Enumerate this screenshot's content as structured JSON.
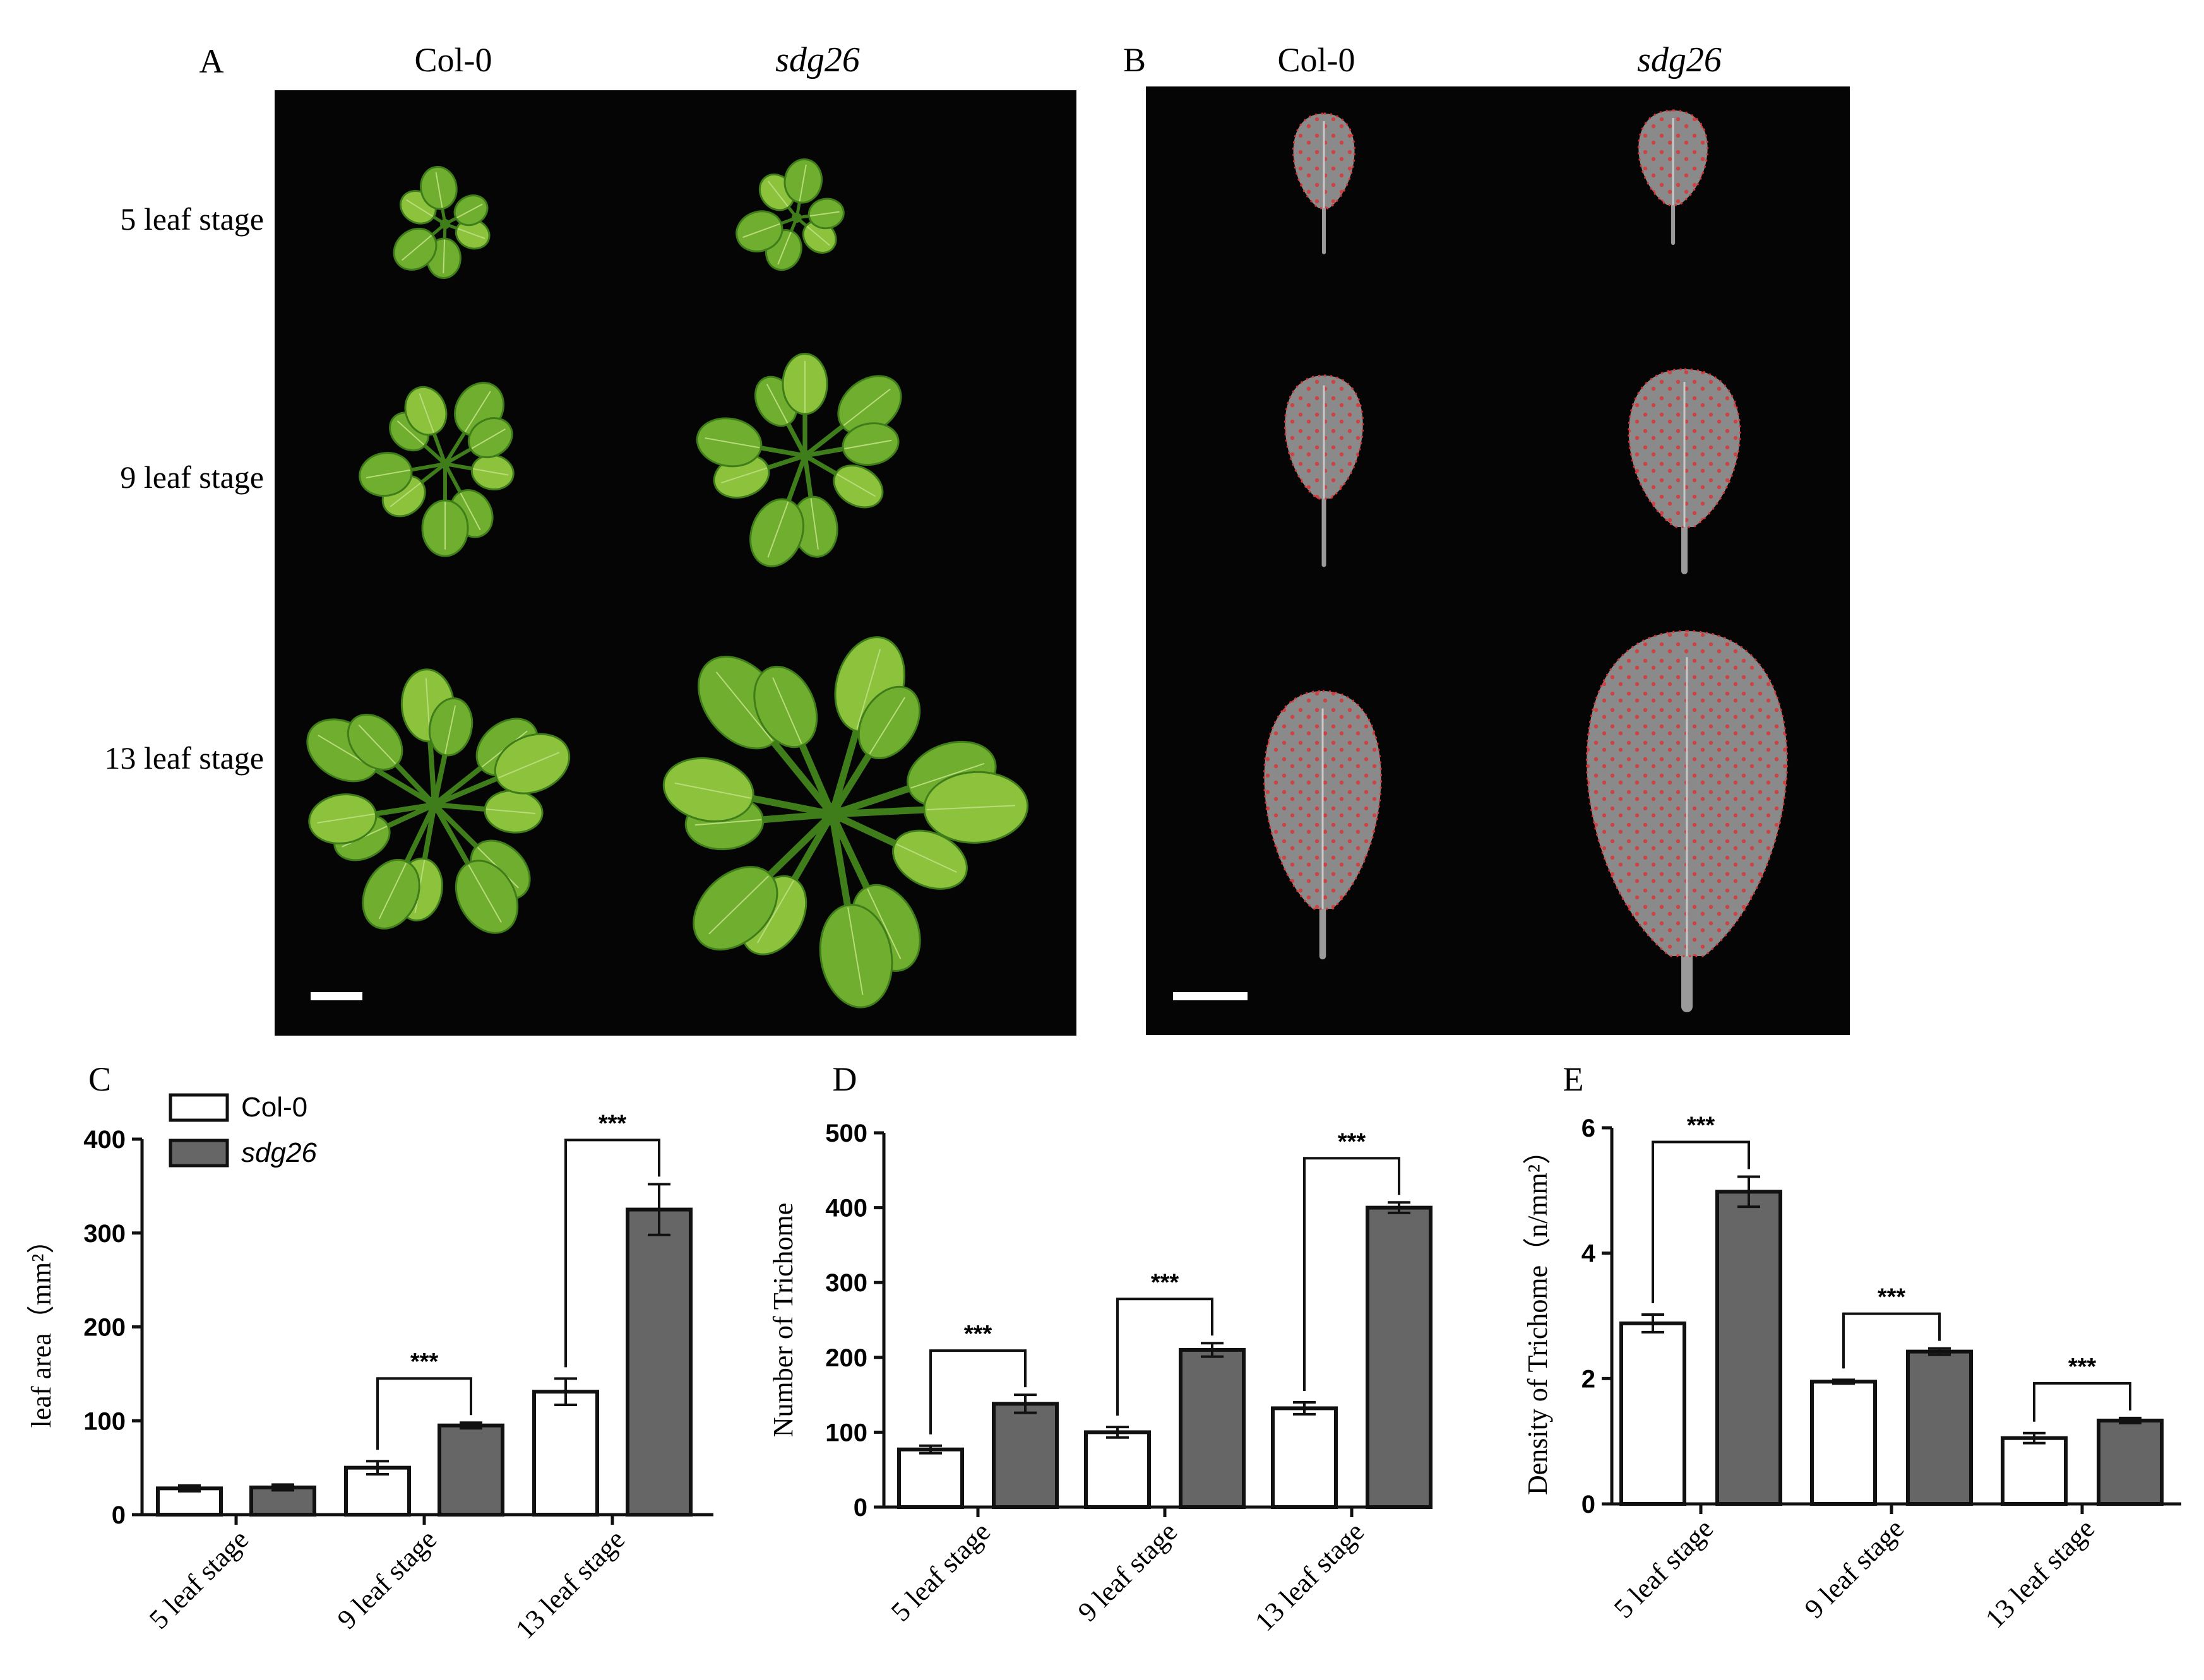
{
  "panels": {
    "A": {
      "label": "A",
      "col_labels": [
        "Col-0",
        "sdg26"
      ],
      "row_labels": [
        "5 leaf stage",
        "9 leaf stage",
        "13 leaf stage"
      ]
    },
    "B": {
      "label": "B",
      "col_labels": [
        "Col-0",
        "sdg26"
      ]
    }
  },
  "colors": {
    "photo_bg": "#050505",
    "leaf_light": "#8cc23c",
    "leaf_dark": "#3f7d1a",
    "leaf_gray": "#8a8a8a",
    "trichome_dot": "#d93535",
    "bar_col0": "#ffffff",
    "bar_sdg26": "#666666",
    "axis": "#111111"
  },
  "chart_data": [
    {
      "panel": "C",
      "type": "bar",
      "title": "",
      "xlabel": "",
      "ylabel": "leaf area（mm²）",
      "categories": [
        "5 leaf stage",
        "9 leaf stage",
        "13 leaf stage"
      ],
      "series": [
        {
          "name": "Col-0",
          "values": [
            28,
            50,
            131
          ],
          "errors": [
            3,
            7,
            14
          ]
        },
        {
          "name": "sdg26",
          "values": [
            29,
            95,
            325
          ],
          "errors": [
            3,
            3,
            27
          ]
        }
      ],
      "ylim": [
        0,
        400
      ],
      "yticks": [
        0,
        100,
        200,
        300,
        400
      ],
      "legend": "top-left",
      "significance": [
        "",
        "***",
        "***"
      ]
    },
    {
      "panel": "D",
      "type": "bar",
      "title": "",
      "xlabel": "",
      "ylabel": "Number of Trichome",
      "categories": [
        "5 leaf stage",
        "9 leaf stage",
        "13 leaf stage"
      ],
      "series": [
        {
          "name": "Col-0",
          "values": [
            77,
            100,
            132
          ],
          "errors": [
            5,
            7,
            8
          ]
        },
        {
          "name": "sdg26",
          "values": [
            138,
            210,
            400
          ],
          "errors": [
            12,
            9,
            7
          ]
        }
      ],
      "ylim": [
        0,
        500
      ],
      "yticks": [
        0,
        100,
        200,
        300,
        400,
        500
      ],
      "significance": [
        "***",
        "***",
        "***"
      ]
    },
    {
      "panel": "E",
      "type": "bar",
      "title": "",
      "xlabel": "",
      "ylabel": "Density of Trichome（n/mm²）",
      "categories": [
        "5 leaf stage",
        "9 leaf stage",
        "13 leaf stage"
      ],
      "series": [
        {
          "name": "Col-0",
          "values": [
            2.88,
            1.95,
            1.05
          ],
          "errors": [
            0.14,
            0.03,
            0.08
          ]
        },
        {
          "name": "sdg26",
          "values": [
            4.98,
            2.43,
            1.33
          ],
          "errors": [
            0.24,
            0.05,
            0.04
          ]
        }
      ],
      "ylim": [
        0,
        6
      ],
      "yticks": [
        0,
        2,
        4,
        6
      ],
      "significance": [
        "***",
        "***",
        "***"
      ]
    }
  ]
}
